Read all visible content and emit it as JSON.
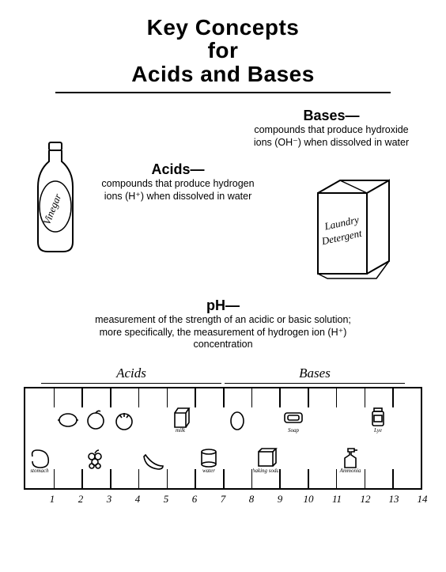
{
  "title_line1": "Key Concepts",
  "title_line2": "for",
  "title_line3": "Acids and Bases",
  "bases": {
    "heading": "Bases—",
    "body": "compounds that produce hydroxide ions (OH⁻) when dissolved in water"
  },
  "acids": {
    "heading": "Acids—",
    "body": "compounds that produce hydrogen ions (H⁺) when dissolved in water"
  },
  "ph": {
    "heading": "pH—",
    "body": "measurement of the strength of an acidic or basic solution; more specifically, the measurement of hydrogen ion (H⁺) concentration"
  },
  "vinegar_label": "Vinegar",
  "detergent_line1": "Laundry",
  "detergent_line2": "Detergent",
  "scale": {
    "left_label": "Acids",
    "right_label": "Bases",
    "count": 14,
    "numbers": [
      "1",
      "2",
      "3",
      "4",
      "5",
      "6",
      "7",
      "8",
      "9",
      "10",
      "11",
      "12",
      "13",
      "14"
    ],
    "items": [
      {
        "name": "stomach",
        "label": "stomach",
        "pos": 1,
        "row": "bottom",
        "icon": "stomach"
      },
      {
        "name": "lemon",
        "label": "",
        "pos": 2,
        "row": "top",
        "icon": "lemon"
      },
      {
        "name": "orange",
        "label": "",
        "pos": 3,
        "row": "top",
        "icon": "orange"
      },
      {
        "name": "grapes",
        "label": "",
        "pos": 3,
        "row": "bottom",
        "icon": "grapes"
      },
      {
        "name": "tomato",
        "label": "",
        "pos": 4,
        "row": "top",
        "icon": "tomato"
      },
      {
        "name": "banana",
        "label": "",
        "pos": 5,
        "row": "bottom",
        "icon": "banana"
      },
      {
        "name": "milk",
        "label": "milk",
        "pos": 6,
        "row": "top",
        "icon": "carton"
      },
      {
        "name": "water",
        "label": "water",
        "pos": 7,
        "row": "bottom",
        "icon": "can"
      },
      {
        "name": "egg",
        "label": "",
        "pos": 8,
        "row": "top",
        "icon": "egg"
      },
      {
        "name": "baking-soda",
        "label": "baking soda",
        "pos": 9,
        "row": "bottom",
        "icon": "box"
      },
      {
        "name": "soap",
        "label": "Soap",
        "pos": 10,
        "row": "top",
        "icon": "soap"
      },
      {
        "name": "ammonia",
        "label": "Ammonia",
        "pos": 12,
        "row": "bottom",
        "icon": "spray"
      },
      {
        "name": "lye",
        "label": "Lye",
        "pos": 13,
        "row": "top",
        "icon": "jar"
      }
    ]
  },
  "colors": {
    "ink": "#000000",
    "bg": "#ffffff"
  }
}
